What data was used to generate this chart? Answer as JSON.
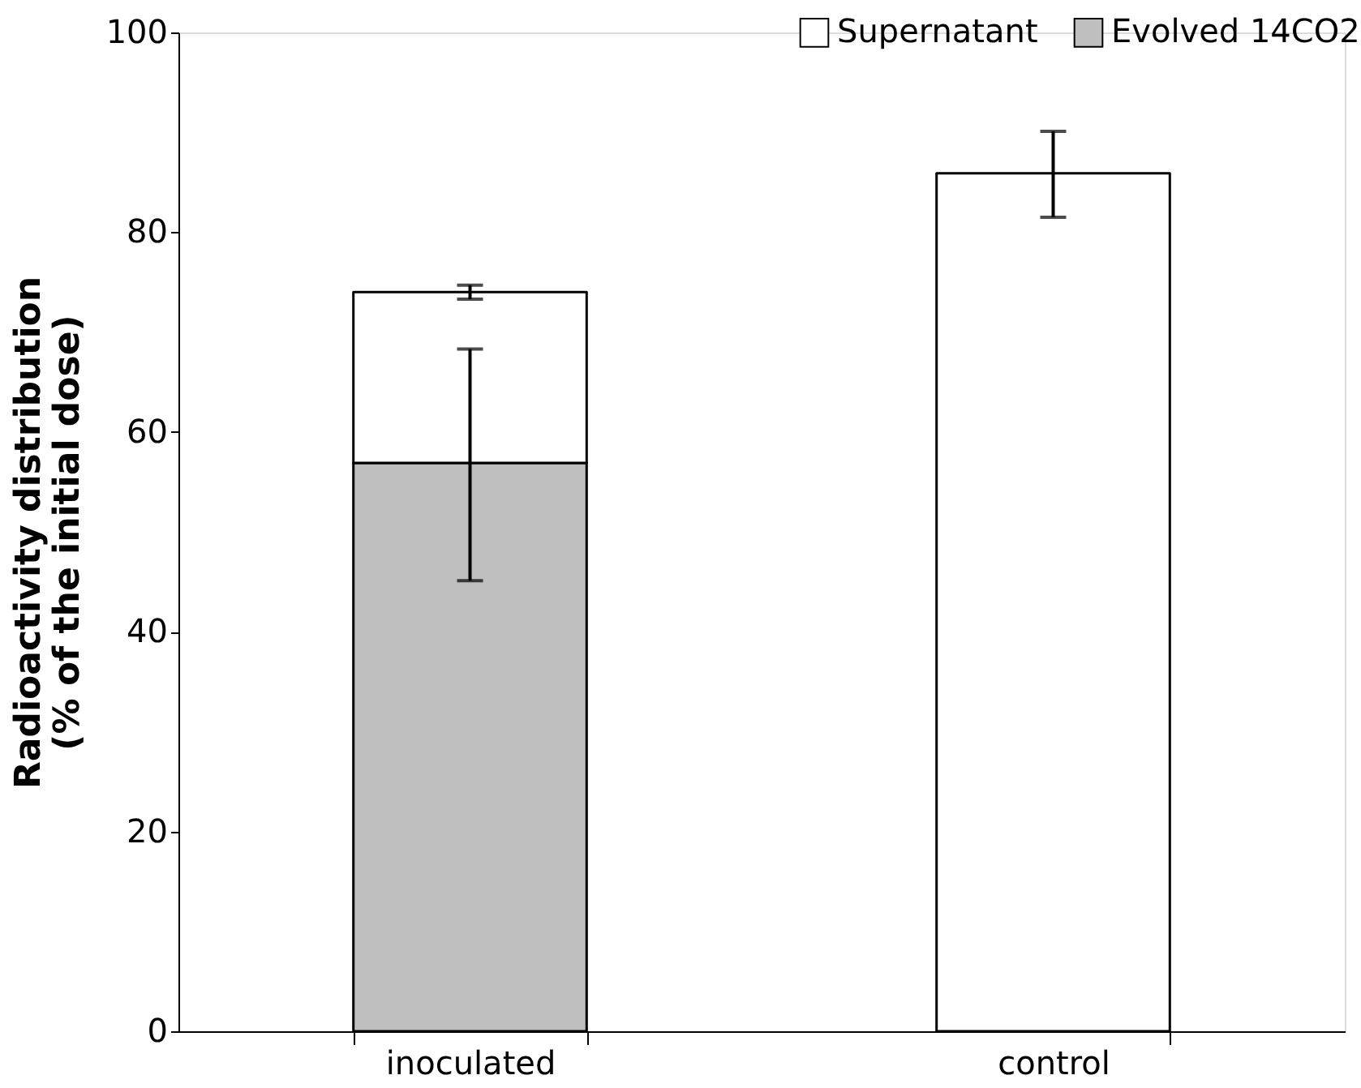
{
  "chart_data": {
    "type": "bar",
    "stacked": true,
    "categories": [
      "inoculated",
      "control"
    ],
    "ylabel": "Radioactivity distribution\n(% of the initial dose)",
    "ylim": [
      0,
      100
    ],
    "yticks": [
      0,
      20,
      40,
      60,
      80,
      100
    ],
    "grid": false,
    "legend": "top right",
    "series": [
      {
        "name": "Evolved 14CO2",
        "color": "#bfbfbf",
        "values": [
          56.9,
          null
        ],
        "errors": [
          [
            45.1,
            68.3
          ],
          null
        ]
      },
      {
        "name": "Supernatant",
        "color": "#ffffff",
        "values": [
          17.1,
          85.9
        ],
        "errors": [
          [
            73.3,
            74.7
          ],
          [
            81.5,
            90.1
          ]
        ]
      }
    ]
  }
}
